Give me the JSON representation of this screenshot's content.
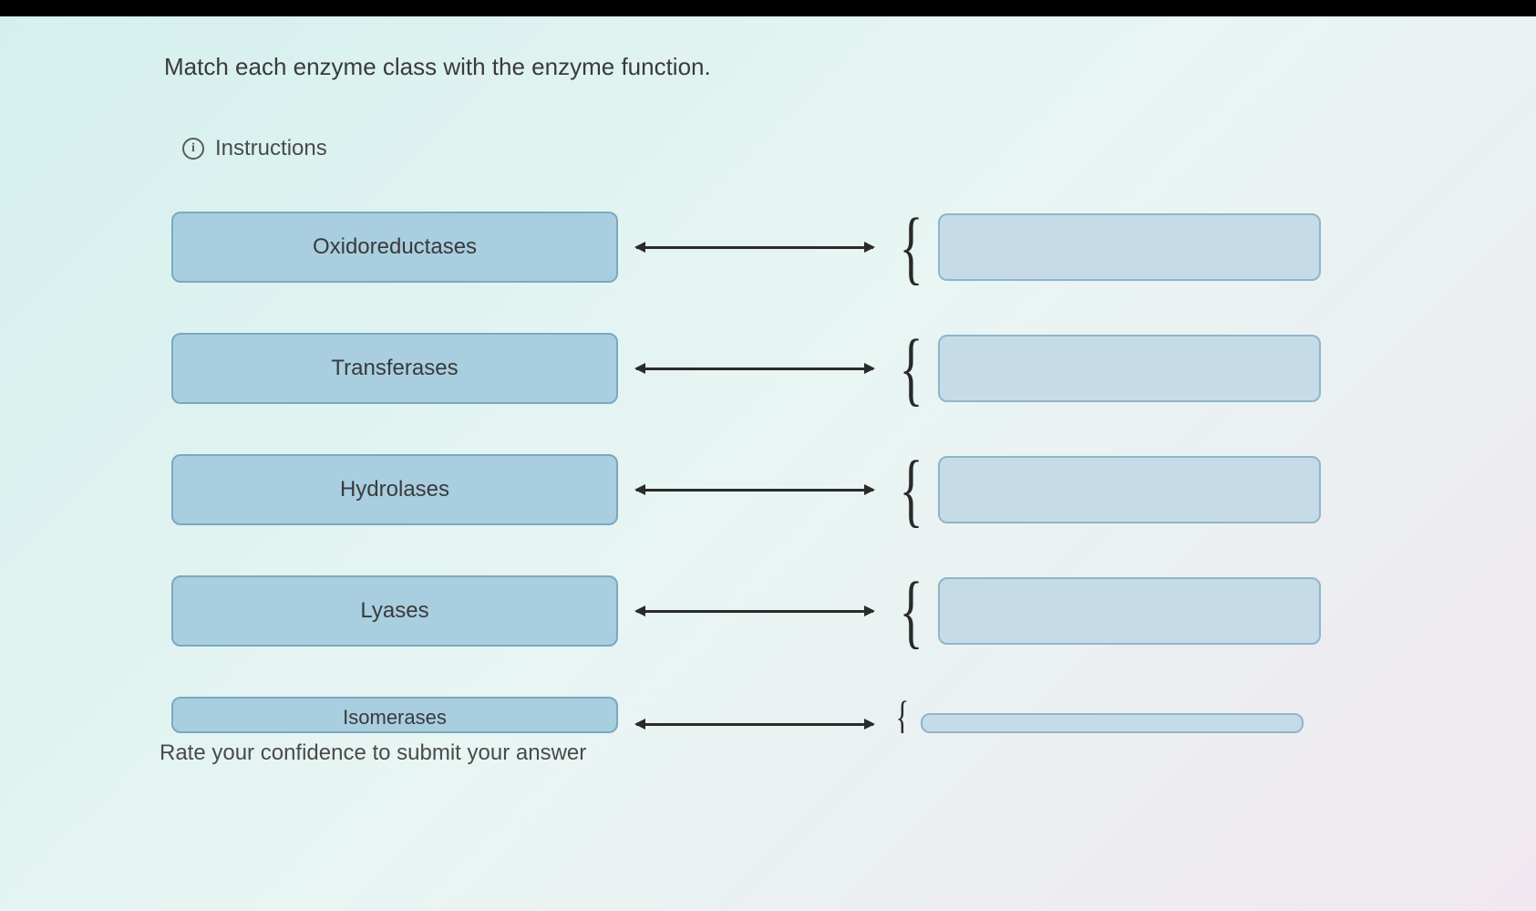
{
  "question": {
    "prompt": "Match each enzyme class with the enzyme function.",
    "instructions_label": "Instructions"
  },
  "matching": {
    "items": [
      {
        "label": "Oxidoreductases"
      },
      {
        "label": "Transferases"
      },
      {
        "label": "Hydrolases"
      },
      {
        "label": "Lyases"
      },
      {
        "label": "Isomerases"
      }
    ]
  },
  "footer": {
    "confidence_text": "Rate your confidence to submit your answer"
  },
  "style": {
    "enzyme_box_bg": "#a8cee0",
    "enzyme_box_border": "#7ba8c0",
    "drop_target_bg": "#c5dce8",
    "drop_target_border": "#8fb5c8",
    "text_color": "#3a3a3a",
    "connector_color": "#2a2a2a",
    "background_gradient_start": "#d4f0ed",
    "background_gradient_end": "#f0e8f0",
    "border_radius": 10,
    "font_size_body": 24,
    "font_size_question": 26
  }
}
